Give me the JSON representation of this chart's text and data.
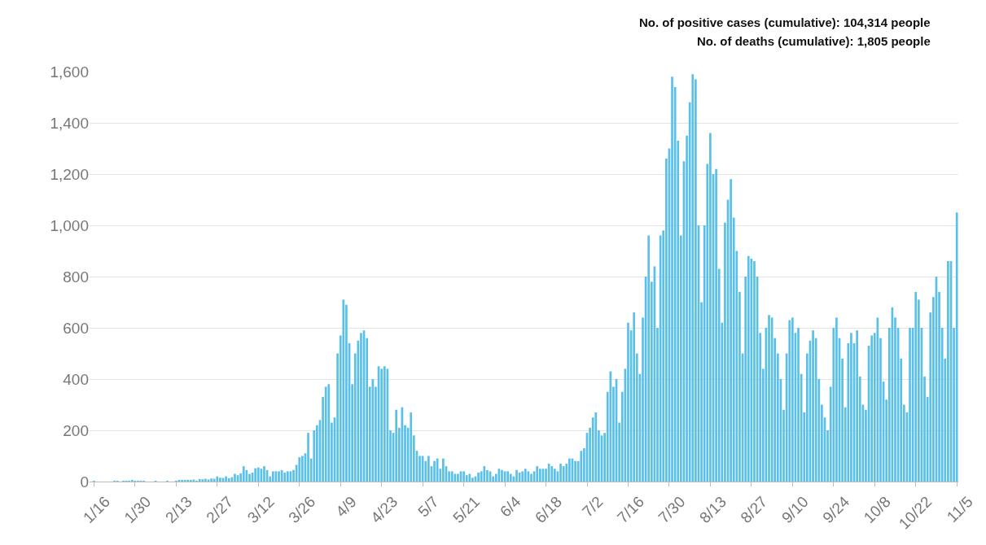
{
  "chart_data": {
    "type": "bar",
    "annotations": [
      "No. of positive cases (cumulative): 104,314 people",
      "No. of deaths (cumulative): 1,805 people"
    ],
    "categories": [
      "1/16",
      null,
      null,
      null,
      null,
      null,
      null,
      null,
      null,
      null,
      null,
      null,
      null,
      null,
      "1/30",
      null,
      null,
      null,
      null,
      null,
      null,
      null,
      null,
      null,
      null,
      null,
      null,
      null,
      "2/13",
      null,
      null,
      null,
      null,
      null,
      null,
      null,
      null,
      null,
      null,
      null,
      null,
      null,
      "2/27",
      null,
      null,
      null,
      null,
      null,
      null,
      null,
      null,
      null,
      null,
      null,
      null,
      null,
      "3/12",
      null,
      null,
      null,
      null,
      null,
      null,
      null,
      null,
      null,
      null,
      null,
      null,
      null,
      "3/26",
      null,
      null,
      null,
      null,
      null,
      null,
      null,
      null,
      null,
      null,
      null,
      null,
      null,
      "4/9",
      null,
      null,
      null,
      null,
      null,
      null,
      null,
      null,
      null,
      null,
      null,
      null,
      null,
      "4/23",
      null,
      null,
      null,
      null,
      null,
      null,
      null,
      null,
      null,
      null,
      null,
      null,
      null,
      "5/7",
      null,
      null,
      null,
      null,
      null,
      null,
      null,
      null,
      null,
      null,
      null,
      null,
      null,
      "5/21",
      null,
      null,
      null,
      null,
      null,
      null,
      null,
      null,
      null,
      null,
      null,
      null,
      null,
      "6/4",
      null,
      null,
      null,
      null,
      null,
      null,
      null,
      null,
      null,
      null,
      null,
      null,
      null,
      "6/18",
      null,
      null,
      null,
      null,
      null,
      null,
      null,
      null,
      null,
      null,
      null,
      null,
      null,
      "7/2",
      null,
      null,
      null,
      null,
      null,
      null,
      null,
      null,
      null,
      null,
      null,
      null,
      null,
      "7/16",
      null,
      null,
      null,
      null,
      null,
      null,
      null,
      null,
      null,
      null,
      null,
      null,
      null,
      "7/30",
      null,
      null,
      null,
      null,
      null,
      null,
      null,
      null,
      null,
      null,
      null,
      null,
      null,
      "8/13",
      null,
      null,
      null,
      null,
      null,
      null,
      null,
      null,
      null,
      null,
      null,
      null,
      null,
      "8/27",
      null,
      null,
      null,
      null,
      null,
      null,
      null,
      null,
      null,
      null,
      null,
      null,
      null,
      "9/10",
      null,
      null,
      null,
      null,
      null,
      null,
      null,
      null,
      null,
      null,
      null,
      null,
      null,
      "9/24",
      null,
      null,
      null,
      null,
      null,
      null,
      null,
      null,
      null,
      null,
      null,
      null,
      null,
      "10/8",
      null,
      null,
      null,
      null,
      null,
      null,
      null,
      null,
      null,
      null,
      null,
      null,
      null,
      "10/22",
      null,
      null,
      null,
      null,
      null,
      null,
      null,
      null,
      null,
      null,
      null,
      null,
      null,
      "11/5"
    ],
    "values": [
      1,
      null,
      null,
      null,
      null,
      null,
      null,
      1,
      1,
      null,
      1,
      1,
      2,
      4,
      3,
      2,
      1,
      2,
      null,
      null,
      null,
      1,
      null,
      null,
      null,
      1,
      null,
      null,
      2,
      5,
      5,
      6,
      7,
      6,
      8,
      3,
      10,
      9,
      11,
      8,
      12,
      11,
      20,
      15,
      14,
      20,
      13,
      17,
      30,
      25,
      32,
      60,
      45,
      30,
      35,
      52,
      55,
      50,
      60,
      45,
      20,
      40,
      40,
      40,
      45,
      35,
      40,
      40,
      45,
      65,
      95,
      100,
      110,
      190,
      90,
      200,
      220,
      240,
      330,
      370,
      380,
      230,
      250,
      500,
      570,
      710,
      690,
      540,
      380,
      500,
      550,
      580,
      590,
      560,
      370,
      400,
      370,
      450,
      440,
      450,
      440,
      200,
      190,
      280,
      210,
      290,
      220,
      210,
      270,
      180,
      120,
      100,
      100,
      80,
      100,
      60,
      80,
      90,
      50,
      90,
      60,
      40,
      40,
      30,
      30,
      40,
      40,
      25,
      30,
      15,
      20,
      35,
      40,
      60,
      45,
      40,
      20,
      30,
      50,
      45,
      40,
      40,
      30,
      20,
      45,
      35,
      40,
      50,
      40,
      30,
      40,
      60,
      50,
      50,
      50,
      70,
      60,
      50,
      40,
      70,
      60,
      70,
      90,
      90,
      80,
      80,
      120,
      130,
      190,
      210,
      250,
      270,
      200,
      180,
      190,
      350,
      430,
      370,
      400,
      230,
      350,
      440,
      620,
      590,
      660,
      500,
      420,
      640,
      800,
      960,
      780,
      840,
      600,
      960,
      980,
      1260,
      1300,
      1580,
      1540,
      1330,
      960,
      1250,
      1350,
      1480,
      1590,
      1570,
      1000,
      700,
      1000,
      1240,
      1360,
      1200,
      1220,
      830,
      620,
      1010,
      1100,
      1180,
      1030,
      900,
      740,
      500,
      800,
      880,
      870,
      860,
      800,
      580,
      440,
      600,
      650,
      640,
      560,
      500,
      400,
      280,
      500,
      630,
      640,
      580,
      600,
      420,
      270,
      500,
      550,
      590,
      560,
      400,
      300,
      250,
      200,
      370,
      600,
      640,
      560,
      480,
      290,
      540,
      580,
      540,
      590,
      410,
      300,
      280,
      530,
      570,
      580,
      640,
      560,
      390,
      320,
      600,
      680,
      640,
      600,
      480,
      300,
      270,
      600,
      600,
      740,
      710,
      600,
      410,
      330,
      660,
      720,
      800,
      740,
      600,
      480,
      860,
      860,
      600,
      1050
    ],
    "color": "#5bc0e8",
    "ylim": [
      0,
      1600
    ],
    "yticks": [
      {
        "value": 0,
        "label": "0"
      },
      {
        "value": 200,
        "label": "200"
      },
      {
        "value": 400,
        "label": "400"
      },
      {
        "value": 600,
        "label": "600"
      },
      {
        "value": 800,
        "label": "800"
      },
      {
        "value": 1000,
        "label": "1,000"
      },
      {
        "value": 1200,
        "label": "1,200"
      },
      {
        "value": 1400,
        "label": "1,400"
      },
      {
        "value": 1600,
        "label": "1,600"
      }
    ],
    "grid": "y"
  }
}
